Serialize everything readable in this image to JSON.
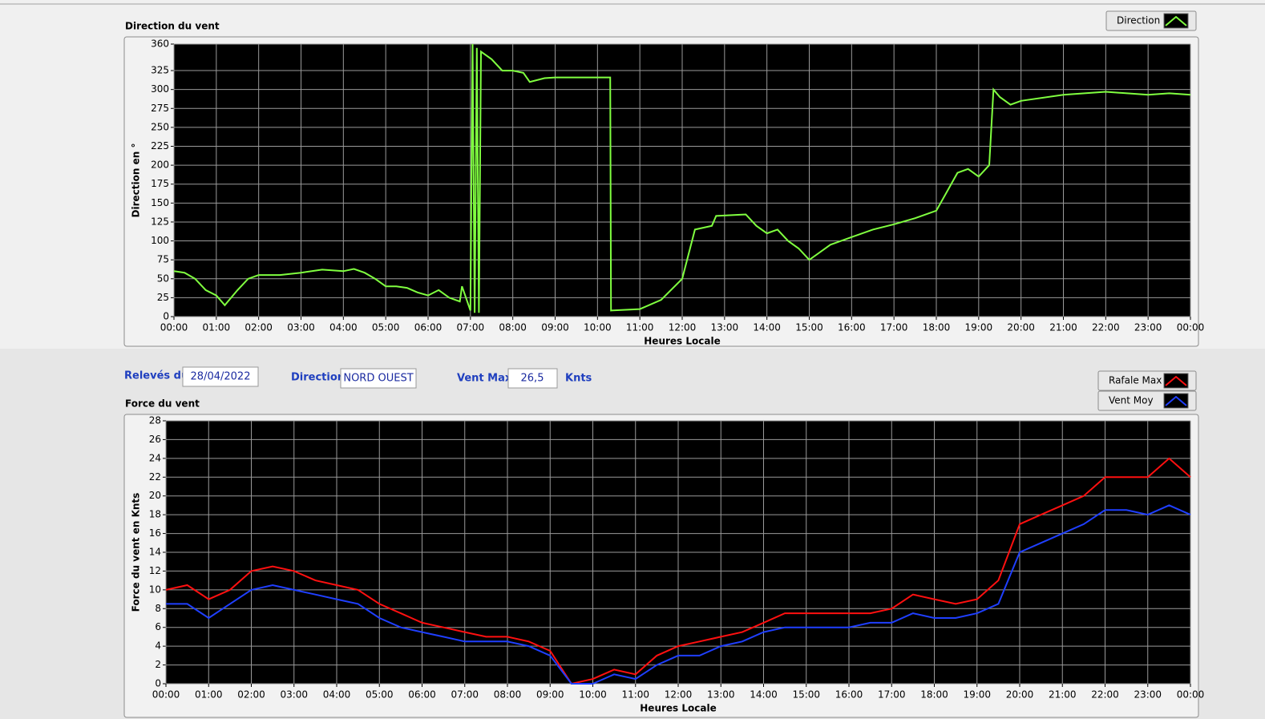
{
  "chart_data": [
    {
      "type": "line",
      "title": "Direction du vent",
      "x_label": "Heures Locale",
      "y_label": "Direction en °",
      "grid": true,
      "x": [
        0,
        0.25,
        0.5,
        0.75,
        1,
        1.2,
        1.5,
        1.75,
        2,
        2.5,
        3,
        3.5,
        4,
        4.25,
        4.5,
        4.75,
        5,
        5.25,
        5.5,
        5.75,
        6,
        6.25,
        6.5,
        6.75,
        6.8,
        7,
        7.05,
        7.1,
        7.15,
        7.2,
        7.25,
        7.5,
        7.75,
        8,
        8.25,
        8.4,
        8.75,
        9,
        10,
        10.3,
        10.32,
        11,
        11.5,
        12,
        12.3,
        12.7,
        12.8,
        13.5,
        13.75,
        14,
        14.25,
        14.5,
        14.75,
        15,
        15.5,
        16,
        16.5,
        17,
        17.5,
        18,
        18.25,
        18.5,
        18.75,
        19,
        19.25,
        19.35,
        19.5,
        19.75,
        20,
        21,
        22,
        23,
        23.5,
        24
      ],
      "series": [
        {
          "name": "Direction",
          "color": "#80ff40",
          "values": [
            60,
            58,
            50,
            35,
            28,
            15,
            35,
            50,
            55,
            55,
            58,
            62,
            60,
            63,
            58,
            50,
            40,
            40,
            38,
            32,
            28,
            35,
            25,
            20,
            40,
            8,
            360,
            5,
            355,
            5,
            350,
            340,
            325,
            325,
            322,
            310,
            315,
            316,
            316,
            316,
            8,
            10,
            22,
            50,
            115,
            120,
            133,
            135,
            120,
            110,
            115,
            100,
            90,
            75,
            95,
            105,
            115,
            122,
            130,
            140,
            165,
            190,
            195,
            185,
            200,
            300,
            290,
            280,
            285,
            293,
            297,
            293,
            295,
            293
          ]
        }
      ],
      "xlim": [
        0,
        24
      ],
      "ylim": [
        0,
        360
      ],
      "yticks": [
        0,
        25,
        50,
        75,
        100,
        125,
        150,
        175,
        200,
        225,
        250,
        275,
        300,
        325,
        360
      ],
      "xticks": [
        {
          "value": 0,
          "label": "00:00"
        },
        {
          "value": 1,
          "label": "01:00"
        },
        {
          "value": 2,
          "label": "02:00"
        },
        {
          "value": 3,
          "label": "03:00"
        },
        {
          "value": 4,
          "label": "04:00"
        },
        {
          "value": 5,
          "label": "05:00"
        },
        {
          "value": 6,
          "label": "06:00"
        },
        {
          "value": 7,
          "label": "07:00"
        },
        {
          "value": 8,
          "label": "08:00"
        },
        {
          "value": 9,
          "label": "09:00"
        },
        {
          "value": 10,
          "label": "10:00"
        },
        {
          "value": 11,
          "label": "11:00"
        },
        {
          "value": 12,
          "label": "12:00"
        },
        {
          "value": 13,
          "label": "13:00"
        },
        {
          "value": 14,
          "label": "14:00"
        },
        {
          "value": 15,
          "label": "15:00"
        },
        {
          "value": 16,
          "label": "16:00"
        },
        {
          "value": 17,
          "label": "17:00"
        },
        {
          "value": 18,
          "label": "18:00"
        },
        {
          "value": 19,
          "label": "19:00"
        },
        {
          "value": 20,
          "label": "20:00"
        },
        {
          "value": 21,
          "label": "21:00"
        },
        {
          "value": 22,
          "label": "22:00"
        },
        {
          "value": 23,
          "label": "23:00"
        },
        {
          "value": 24,
          "label": "00:00"
        }
      ]
    },
    {
      "type": "line",
      "title": "Force du vent",
      "x_label": "Heures Locale",
      "y_label": "Force du vent en Knts",
      "grid": true,
      "x": [
        0,
        0.5,
        1,
        1.5,
        2,
        2.5,
        3,
        3.5,
        4,
        4.5,
        5,
        5.5,
        6,
        6.5,
        7,
        7.5,
        8,
        8.5,
        9,
        9.5,
        10,
        10.5,
        11,
        11.5,
        12,
        12.5,
        13,
        13.5,
        14,
        14.5,
        15,
        15.5,
        16,
        16.5,
        17,
        17.5,
        18,
        18.5,
        19,
        19.5,
        20,
        20.5,
        21,
        21.5,
        22,
        22.5,
        23,
        23.5,
        24
      ],
      "series": [
        {
          "name": "Rafale Max",
          "color": "#ff1010",
          "values": [
            10,
            10.5,
            9,
            10,
            12,
            12.5,
            12,
            11,
            10.5,
            10,
            8.5,
            7.5,
            6.5,
            6,
            5.5,
            5,
            5,
            4.5,
            3.5,
            0,
            0.5,
            1.5,
            1,
            3,
            4,
            4.5,
            5,
            5.5,
            6.5,
            7.5,
            7.5,
            7.5,
            7.5,
            7.5,
            8,
            9.5,
            9,
            8.5,
            9,
            11,
            17,
            18,
            19,
            20,
            22,
            22,
            22,
            24,
            22
          ]
        },
        {
          "name": "Vent Moy",
          "color": "#1f3fff",
          "values": [
            8.5,
            8.5,
            7,
            8.5,
            10,
            10.5,
            10,
            9.5,
            9,
            8.5,
            7,
            6,
            5.5,
            5,
            4.5,
            4.5,
            4.5,
            4,
            3,
            0,
            0,
            1,
            0.5,
            2,
            3,
            3,
            4,
            4.5,
            5.5,
            6,
            6,
            6,
            6,
            6.5,
            6.5,
            7.5,
            7,
            7,
            7.5,
            8.5,
            14,
            15,
            16,
            17,
            18.5,
            18.5,
            18,
            19,
            18
          ]
        }
      ],
      "xlim": [
        0,
        24
      ],
      "ylim": [
        0,
        28
      ],
      "yticks": [
        0,
        2,
        4,
        6,
        8,
        10,
        12,
        14,
        16,
        18,
        20,
        22,
        24,
        26,
        28
      ],
      "xticks": [
        {
          "value": 0,
          "label": "00:00"
        },
        {
          "value": 1,
          "label": "01:00"
        },
        {
          "value": 2,
          "label": "02:00"
        },
        {
          "value": 3,
          "label": "03:00"
        },
        {
          "value": 4,
          "label": "04:00"
        },
        {
          "value": 5,
          "label": "05:00"
        },
        {
          "value": 6,
          "label": "06:00"
        },
        {
          "value": 7,
          "label": "07:00"
        },
        {
          "value": 8,
          "label": "08:00"
        },
        {
          "value": 9,
          "label": "09:00"
        },
        {
          "value": 10,
          "label": "10:00"
        },
        {
          "value": 11,
          "label": "11:00"
        },
        {
          "value": 12,
          "label": "12:00"
        },
        {
          "value": 13,
          "label": "13:00"
        },
        {
          "value": 14,
          "label": "14:00"
        },
        {
          "value": 15,
          "label": "15:00"
        },
        {
          "value": 16,
          "label": "16:00"
        },
        {
          "value": 17,
          "label": "17:00"
        },
        {
          "value": 18,
          "label": "18:00"
        },
        {
          "value": 19,
          "label": "19:00"
        },
        {
          "value": 20,
          "label": "20:00"
        },
        {
          "value": 21,
          "label": "21:00"
        },
        {
          "value": 22,
          "label": "22:00"
        },
        {
          "value": 23,
          "label": "23:00"
        },
        {
          "value": 24,
          "label": "00:00"
        }
      ]
    }
  ],
  "form": {
    "date_label": "Relevés du",
    "date": "28/04/2022",
    "direction_label": "Direction",
    "direction": "NORD OUEST",
    "vent_max_label": "Vent Max",
    "vent_max": "26,5",
    "unit": "Knts"
  }
}
